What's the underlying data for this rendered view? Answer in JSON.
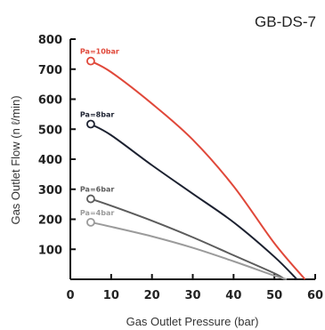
{
  "chart_data": {
    "type": "line",
    "title": "GB-DS-7",
    "xlabel": "Gas Outlet Pressure (bar)",
    "ylabel": "Gas Outlet Flow (n ℓ/min)",
    "xlim": [
      0,
      60
    ],
    "ylim": [
      0,
      800
    ],
    "xticks": [
      0,
      10,
      20,
      30,
      40,
      50,
      60
    ],
    "yticks": [
      100,
      200,
      300,
      400,
      500,
      600,
      700,
      800
    ],
    "grid": false,
    "series": [
      {
        "name": "Pa=10bar",
        "color": "#e0483a",
        "points": [
          [
            5,
            727
          ],
          [
            10,
            690
          ],
          [
            20,
            585
          ],
          [
            30,
            465
          ],
          [
            40,
            310
          ],
          [
            50,
            120
          ],
          [
            57.5,
            0
          ]
        ]
      },
      {
        "name": "Pa=8bar",
        "color": "#1c2130",
        "points": [
          [
            5,
            517
          ],
          [
            10,
            480
          ],
          [
            20,
            380
          ],
          [
            30,
            285
          ],
          [
            40,
            190
          ],
          [
            50,
            75
          ],
          [
            55.5,
            0
          ]
        ]
      },
      {
        "name": "Pa=6bar",
        "color": "#5c5c5c",
        "points": [
          [
            5,
            268
          ],
          [
            10,
            245
          ],
          [
            20,
            195
          ],
          [
            30,
            140
          ],
          [
            40,
            80
          ],
          [
            50,
            20
          ],
          [
            52.5,
            0
          ]
        ]
      },
      {
        "name": "Pa=4bar",
        "color": "#9b9b9b",
        "points": [
          [
            5,
            190
          ],
          [
            10,
            175
          ],
          [
            20,
            143
          ],
          [
            30,
            105
          ],
          [
            40,
            60
          ],
          [
            50,
            12
          ],
          [
            53,
            0
          ]
        ]
      }
    ]
  }
}
